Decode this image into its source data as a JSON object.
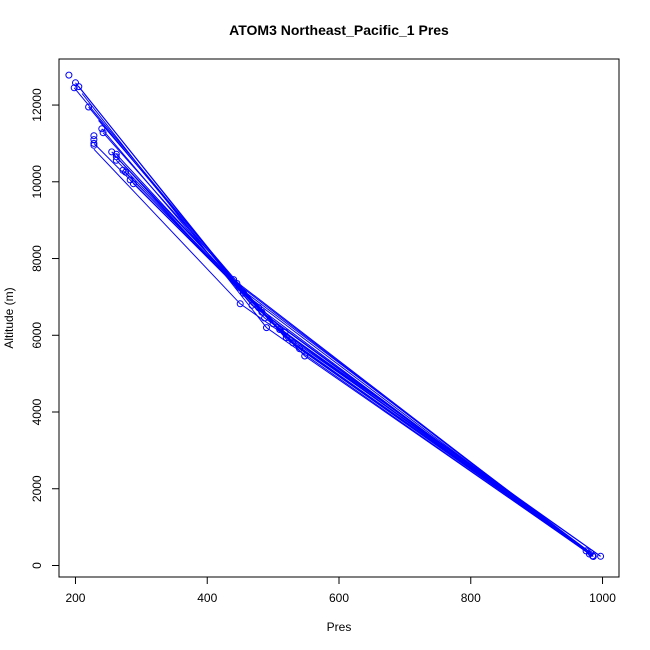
{
  "chart_data": {
    "type": "scatter",
    "title": "ATOM3 Northeast_Pacific_1 Pres",
    "xlabel": "Pres",
    "ylabel": "Altitude (m)",
    "xlim": [
      175,
      1025
    ],
    "ylim": [
      -300,
      13200
    ],
    "x_ticks": [
      200,
      400,
      600,
      800,
      1000
    ],
    "y_ticks": [
      0,
      2000,
      4000,
      6000,
      8000,
      10000,
      12000
    ],
    "grid": false,
    "color": "#0000ff",
    "points": [
      [
        190,
        12780
      ],
      [
        200,
        12580
      ],
      [
        198,
        12450
      ],
      [
        205,
        12480
      ],
      [
        220,
        11950
      ],
      [
        240,
        11380
      ],
      [
        242,
        11280
      ],
      [
        228,
        11200
      ],
      [
        228,
        11100
      ],
      [
        228,
        11000
      ],
      [
        228,
        10950
      ],
      [
        255,
        10780
      ],
      [
        262,
        10720
      ],
      [
        262,
        10650
      ],
      [
        262,
        10560
      ],
      [
        272,
        10300
      ],
      [
        276,
        10250
      ],
      [
        283,
        10050
      ],
      [
        288,
        9950
      ],
      [
        440,
        7450
      ],
      [
        445,
        7350
      ],
      [
        448,
        7250
      ],
      [
        455,
        7100
      ],
      [
        450,
        6820
      ],
      [
        468,
        6780
      ],
      [
        478,
        6720
      ],
      [
        483,
        6600
      ],
      [
        487,
        6450
      ],
      [
        490,
        6200
      ],
      [
        500,
        6300
      ],
      [
        510,
        6150
      ],
      [
        518,
        6080
      ],
      [
        520,
        5940
      ],
      [
        530,
        5800
      ],
      [
        540,
        5650
      ],
      [
        548,
        5460
      ],
      [
        975,
        380
      ],
      [
        980,
        300
      ],
      [
        985,
        250
      ],
      [
        982,
        330
      ],
      [
        997,
        240
      ],
      [
        986,
        235
      ]
    ],
    "lines": [
      [
        [
          200,
          12580
        ],
        [
          445,
          7350
        ],
        [
          980,
          300
        ]
      ],
      [
        [
          205,
          12480
        ],
        [
          448,
          7250
        ],
        [
          982,
          330
        ]
      ],
      [
        [
          198,
          12450
        ],
        [
          440,
          7450
        ],
        [
          975,
          380
        ]
      ],
      [
        [
          220,
          11950
        ],
        [
          455,
          7100
        ],
        [
          985,
          250
        ]
      ],
      [
        [
          240,
          11380
        ],
        [
          468,
          6780
        ],
        [
          986,
          235
        ]
      ],
      [
        [
          242,
          11280
        ],
        [
          478,
          6720
        ],
        [
          980,
          300
        ]
      ],
      [
        [
          228,
          11000
        ],
        [
          483,
          6600
        ],
        [
          982,
          330
        ]
      ],
      [
        [
          255,
          10780
        ],
        [
          487,
          6450
        ],
        [
          997,
          240
        ]
      ],
      [
        [
          262,
          10720
        ],
        [
          500,
          6300
        ],
        [
          975,
          380
        ]
      ],
      [
        [
          262,
          10650
        ],
        [
          510,
          6150
        ],
        [
          985,
          250
        ]
      ],
      [
        [
          272,
          10300
        ],
        [
          518,
          6080
        ],
        [
          980,
          300
        ]
      ],
      [
        [
          276,
          10250
        ],
        [
          520,
          5940
        ],
        [
          982,
          330
        ]
      ],
      [
        [
          283,
          10050
        ],
        [
          530,
          5800
        ],
        [
          986,
          235
        ]
      ],
      [
        [
          288,
          9950
        ],
        [
          540,
          5650
        ],
        [
          975,
          380
        ]
      ],
      [
        [
          262,
          10560
        ],
        [
          548,
          5460
        ],
        [
          985,
          250
        ]
      ],
      [
        [
          228,
          10850
        ],
        [
          450,
          6820
        ],
        [
          997,
          240
        ]
      ],
      [
        [
          210,
          12300
        ],
        [
          490,
          6200
        ],
        [
          980,
          300
        ]
      ],
      [
        [
          235,
          11600
        ],
        [
          520,
          5900
        ],
        [
          982,
          330
        ]
      ]
    ]
  }
}
